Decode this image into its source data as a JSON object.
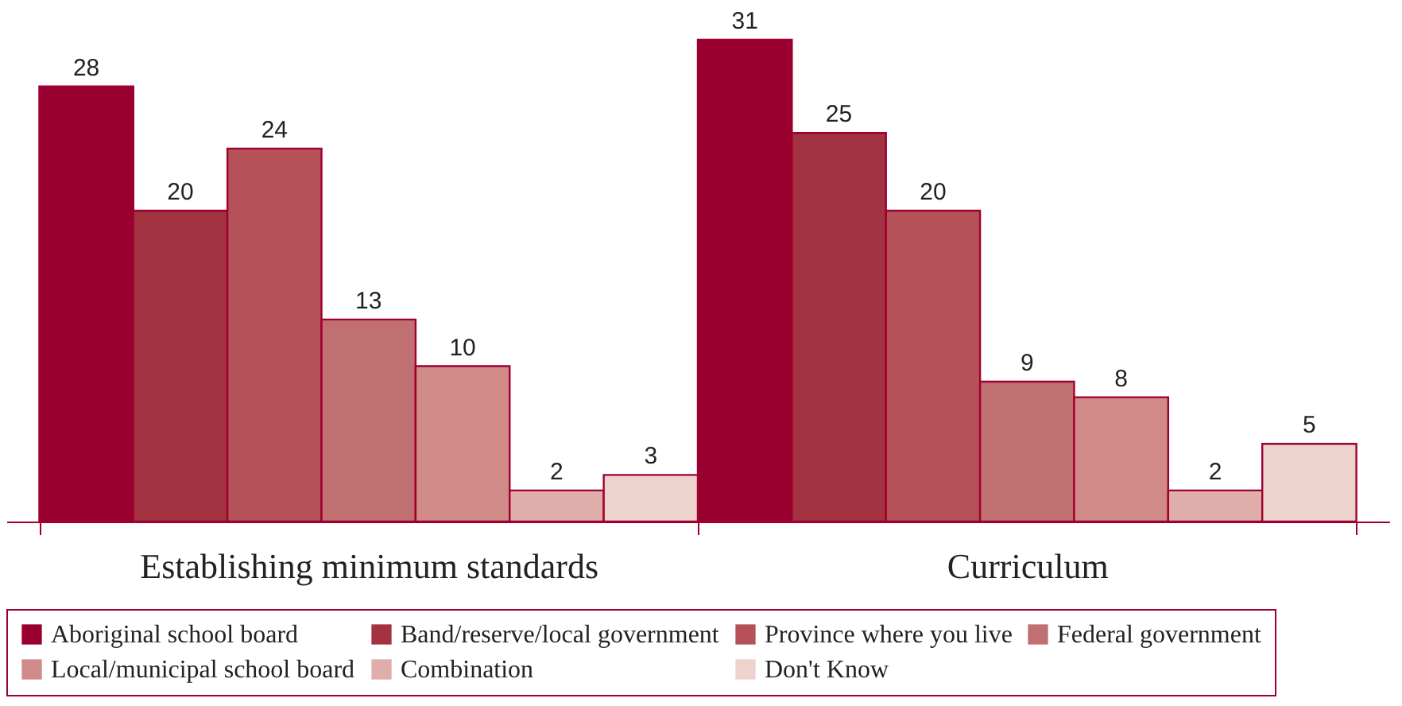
{
  "chart_data": {
    "type": "bar",
    "categories": [
      "Establishing minimum standards",
      "Curriculum"
    ],
    "series": [
      {
        "name": "Aboriginal school board",
        "color": "#990030",
        "values": [
          28,
          31
        ]
      },
      {
        "name": "Band/reserve/local government",
        "color": "#a33340",
        "values": [
          20,
          25
        ]
      },
      {
        "name": "Province where you live",
        "color": "#b55259",
        "values": [
          24,
          20
        ]
      },
      {
        "name": "Federal government",
        "color": "#c07070",
        "values": [
          13,
          9
        ]
      },
      {
        "name": "Local/municipal school board",
        "color": "#d08a88",
        "values": [
          10,
          8
        ]
      },
      {
        "name": "Combination",
        "color": "#dfaeaa",
        "values": [
          2,
          2
        ]
      },
      {
        "name": "Don't Know",
        "color": "#edd2ce",
        "values": [
          3,
          5
        ]
      }
    ],
    "data_labels": true,
    "legend": "bottom",
    "grid": false
  }
}
